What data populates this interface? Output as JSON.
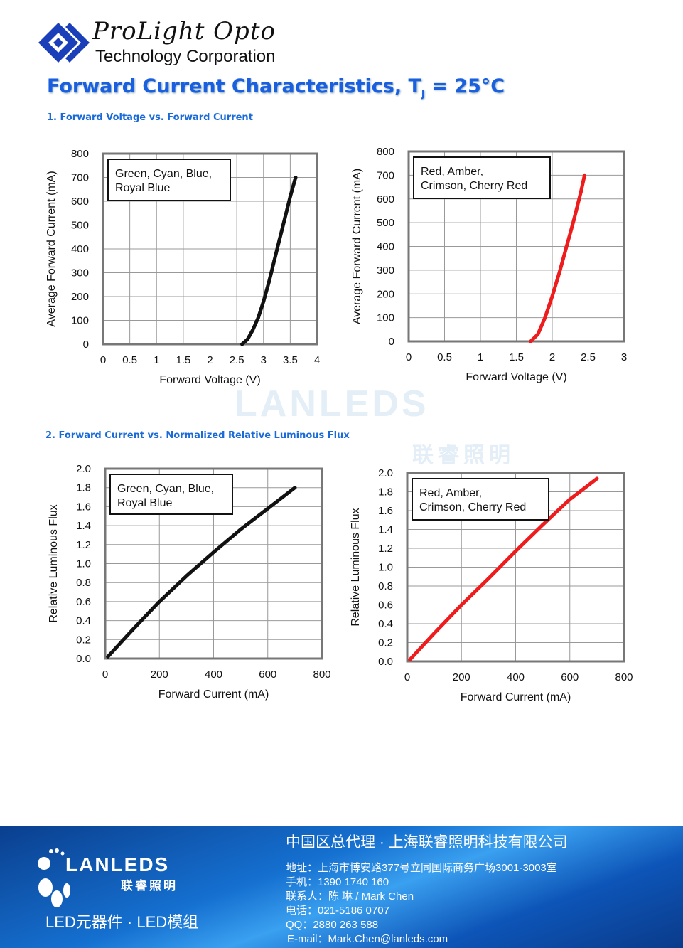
{
  "header": {
    "brand_line1": "ProLight Opto",
    "brand_line2": "Technology Corporation",
    "title": "Forward Current Characteristics, T",
    "title_sub": "J",
    "title_end": " = 25°C"
  },
  "section1": "1. Forward Voltage vs. Forward Current",
  "section2": "2. Forward Current vs. Normalized Relative Luminous Flux",
  "watermark": {
    "text": "LANLEDS",
    "cn": "联睿照明"
  },
  "chart_data": [
    {
      "type": "line",
      "xlabel": "Forward Voltage (V)",
      "ylabel": "Average Forward Current (mA)",
      "xlim": [
        0,
        4
      ],
      "ylim": [
        0,
        800
      ],
      "xticks": [
        "0",
        "0.5",
        "1",
        "1.5",
        "2",
        "2.5",
        "3",
        "3.5",
        "4"
      ],
      "yticks": [
        "0",
        "100",
        "200",
        "300",
        "400",
        "500",
        "600",
        "700",
        "800"
      ],
      "legend": [
        "Green, Cyan, Blue,",
        "Royal Blue"
      ],
      "color": "#111111",
      "grid": true,
      "x": [
        2.6,
        2.7,
        2.8,
        2.9,
        3.0,
        3.1,
        3.2,
        3.3,
        3.4,
        3.5,
        3.6
      ],
      "y": [
        0,
        20,
        60,
        110,
        180,
        260,
        350,
        440,
        530,
        620,
        700
      ]
    },
    {
      "type": "line",
      "xlabel": "Forward Voltage (V)",
      "ylabel": "Average Forward Current (mA)",
      "xlim": [
        0,
        3
      ],
      "ylim": [
        0,
        800
      ],
      "xticks": [
        "0",
        "0.5",
        "1",
        "1.5",
        "2",
        "2.5",
        "3"
      ],
      "yticks": [
        "0",
        "100",
        "200",
        "300",
        "400",
        "500",
        "600",
        "700",
        "800"
      ],
      "legend": [
        "Red, Amber,",
        "Crimson, Cherry Red"
      ],
      "color": "#ee1c1c",
      "grid": true,
      "x": [
        1.7,
        1.8,
        1.9,
        2.0,
        2.1,
        2.2,
        2.3,
        2.4,
        2.45
      ],
      "y": [
        0,
        30,
        100,
        190,
        290,
        400,
        510,
        630,
        700
      ]
    },
    {
      "type": "line",
      "xlabel": "Forward Current (mA)",
      "ylabel": "Relative Luminous Flux",
      "xlim": [
        0,
        800
      ],
      "ylim": [
        0,
        2
      ],
      "xticks": [
        "0",
        "200",
        "400",
        "600",
        "800"
      ],
      "yticks": [
        "0.0",
        "0.2",
        "0.4",
        "0.6",
        "0.8",
        "1.0",
        "1.2",
        "1.4",
        "1.6",
        "1.8",
        "2.0"
      ],
      "legend": [
        "Green, Cyan, Blue,",
        "Royal Blue"
      ],
      "color": "#111111",
      "grid": true,
      "x": [
        10,
        100,
        200,
        300,
        400,
        500,
        600,
        700
      ],
      "y": [
        0.02,
        0.3,
        0.6,
        0.87,
        1.12,
        1.36,
        1.58,
        1.8
      ]
    },
    {
      "type": "line",
      "xlabel": "Forward Current (mA)",
      "ylabel": "Relative Luminous Flux",
      "xlim": [
        0,
        800
      ],
      "ylim": [
        0,
        2
      ],
      "xticks": [
        "0",
        "200",
        "400",
        "600",
        "800"
      ],
      "yticks": [
        "0.0",
        "0.2",
        "0.4",
        "0.6",
        "0.8",
        "1.0",
        "1.2",
        "1.4",
        "1.6",
        "1.8",
        "2.0"
      ],
      "legend": [
        "Red, Amber,",
        "Crimson, Cherry Red"
      ],
      "color": "#ee1c1c",
      "grid": true,
      "x": [
        10,
        100,
        200,
        300,
        400,
        500,
        600,
        700
      ],
      "y": [
        0.02,
        0.3,
        0.6,
        0.88,
        1.17,
        1.45,
        1.72,
        1.94
      ]
    }
  ],
  "footer": {
    "logo": "LANLEDS",
    "logo_cn": "联睿照明",
    "tagline": "LED元器件 · LED模组",
    "heading": "中国区总代理 · 上海联睿照明科技有限公司",
    "lines": [
      "地址：上海市博安路377号立同国际商务广场3001-3003室",
      "手机：1390 1740 160",
      "联系人：陈 琳 / Mark Chen",
      "电话：021-5186 0707",
      "QQ：2880 263 588",
      "E-mail：Mark.Chen@lanleds.com"
    ]
  }
}
